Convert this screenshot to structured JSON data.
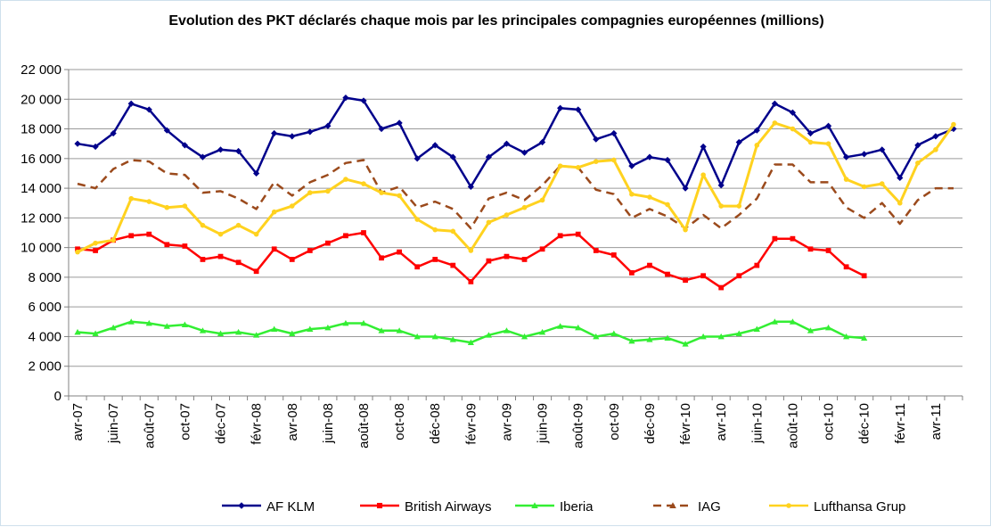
{
  "chart_data": {
    "type": "line",
    "title": "Evolution des PKT déclarés chaque mois par les principales compagnies européennes (millions)",
    "xlabel": "",
    "ylabel": "",
    "ylim": [
      0,
      22000
    ],
    "yticks": [
      0,
      2000,
      4000,
      6000,
      8000,
      10000,
      12000,
      14000,
      16000,
      18000,
      20000,
      22000
    ],
    "ytick_labels": [
      "0",
      "2 000",
      "4 000",
      "6 000",
      "8 000",
      "10 000",
      "12 000",
      "14 000",
      "16 000",
      "18 000",
      "20 000",
      "22 000"
    ],
    "x": [
      "avr-07",
      "mai-07",
      "juin-07",
      "juil-07",
      "août-07",
      "sept-07",
      "oct-07",
      "nov-07",
      "déc-07",
      "janv-08",
      "févr-08",
      "mars-08",
      "avr-08",
      "mai-08",
      "juin-08",
      "juil-08",
      "août-08",
      "sept-08",
      "oct-08",
      "nov-08",
      "déc-08",
      "janv-09",
      "févr-09",
      "mars-09",
      "avr-09",
      "mai-09",
      "juin-09",
      "juil-09",
      "août-09",
      "sept-09",
      "oct-09",
      "nov-09",
      "déc-09",
      "janv-10",
      "févr-10",
      "mars-10",
      "avr-10",
      "mai-10",
      "juin-10",
      "juil-10",
      "août-10",
      "sept-10",
      "oct-10",
      "nov-10",
      "déc-10",
      "janv-11",
      "févr-11",
      "mars-11",
      "avr-11",
      "mai-11"
    ],
    "x_tick_labels": [
      {
        "index": 0,
        "label": "avr-07"
      },
      {
        "index": 2,
        "label": "juin-07"
      },
      {
        "index": 4,
        "label": "août-07"
      },
      {
        "index": 6,
        "label": "oct-07"
      },
      {
        "index": 8,
        "label": "déc-07"
      },
      {
        "index": 10,
        "label": "févr-08"
      },
      {
        "index": 12,
        "label": "avr-08"
      },
      {
        "index": 14,
        "label": "juin-08"
      },
      {
        "index": 16,
        "label": "août-08"
      },
      {
        "index": 18,
        "label": "oct-08"
      },
      {
        "index": 20,
        "label": "déc-08"
      },
      {
        "index": 22,
        "label": "févr-09"
      },
      {
        "index": 24,
        "label": "avr-09"
      },
      {
        "index": 26,
        "label": "juin-09"
      },
      {
        "index": 28,
        "label": "août-09"
      },
      {
        "index": 30,
        "label": "oct-09"
      },
      {
        "index": 32,
        "label": "déc-09"
      },
      {
        "index": 34,
        "label": "févr-10"
      },
      {
        "index": 36,
        "label": "avr-10"
      },
      {
        "index": 38,
        "label": "juin-10"
      },
      {
        "index": 40,
        "label": "août-10"
      },
      {
        "index": 42,
        "label": "oct-10"
      },
      {
        "index": 44,
        "label": "déc-10"
      },
      {
        "index": 46,
        "label": "févr-11"
      },
      {
        "index": 48,
        "label": "avr-11"
      }
    ],
    "grid": "horizontal",
    "legend": "bottom",
    "series": [
      {
        "name": "AF KLM",
        "color": "#00008b",
        "marker": "diamond",
        "dash": "solid",
        "values": [
          17000,
          16800,
          17700,
          19700,
          19300,
          17900,
          16900,
          16100,
          16600,
          16500,
          15000,
          17700,
          17500,
          17800,
          18200,
          20100,
          19900,
          18000,
          18400,
          16000,
          16900,
          16100,
          14100,
          16100,
          17000,
          16400,
          17100,
          19400,
          19300,
          17300,
          17700,
          15500,
          16100,
          15900,
          14000,
          16800,
          14200,
          17100,
          17900,
          19700,
          19100,
          17700,
          18200,
          16100,
          16300,
          16600,
          14700,
          16900,
          17500,
          18000
        ]
      },
      {
        "name": "British Airways",
        "color": "#ff0000",
        "marker": "square",
        "dash": "solid",
        "values": [
          9900,
          9800,
          10500,
          10800,
          10900,
          10200,
          10100,
          9200,
          9400,
          9000,
          8400,
          9900,
          9200,
          9800,
          10300,
          10800,
          11000,
          9300,
          9700,
          8700,
          9200,
          8800,
          7700,
          9100,
          9400,
          9200,
          9900,
          10800,
          10900,
          9800,
          9500,
          8300,
          8800,
          8200,
          7800,
          8100,
          7300,
          8100,
          8800,
          10600,
          10600,
          9900,
          9800,
          8700,
          8100,
          null,
          null,
          null,
          null,
          null
        ]
      },
      {
        "name": "Iberia",
        "color": "#33ee33",
        "marker": "triangle",
        "dash": "solid",
        "values": [
          4300,
          4200,
          4600,
          5000,
          4900,
          4700,
          4800,
          4400,
          4200,
          4300,
          4100,
          4500,
          4200,
          4500,
          4600,
          4900,
          4900,
          4400,
          4400,
          4000,
          4000,
          3800,
          3600,
          4100,
          4400,
          4000,
          4300,
          4700,
          4600,
          4000,
          4200,
          3700,
          3800,
          3900,
          3500,
          4000,
          4000,
          4200,
          4500,
          5000,
          5000,
          4400,
          4600,
          4000,
          3900,
          null,
          null,
          null,
          null,
          null
        ]
      },
      {
        "name": "IAG",
        "color": "#9b4a1c",
        "marker": "triangle",
        "dash": "dashed",
        "values": [
          14300,
          14000,
          15300,
          15900,
          15800,
          15000,
          14900,
          13700,
          13800,
          13300,
          12600,
          14400,
          13500,
          14400,
          14900,
          15700,
          15900,
          13700,
          14100,
          12700,
          13100,
          12600,
          11300,
          13300,
          13700,
          13200,
          14200,
          15500,
          15400,
          13900,
          13600,
          12000,
          12600,
          12100,
          11300,
          12200,
          11300,
          12200,
          13300,
          15600,
          15600,
          14400,
          14400,
          12700,
          12000,
          13000,
          11600,
          13200,
          14000,
          14000
        ]
      },
      {
        "name": "Lufthansa Grup",
        "color": "#ffd21f",
        "marker": "circle",
        "dash": "solid",
        "values": [
          9700,
          10300,
          10500,
          13300,
          13100,
          12700,
          12800,
          11500,
          10900,
          11500,
          10900,
          12400,
          12800,
          13700,
          13800,
          14600,
          14300,
          13700,
          13500,
          11900,
          11200,
          11100,
          9800,
          11700,
          12200,
          12700,
          13200,
          15500,
          15400,
          15800,
          15900,
          13600,
          13400,
          12900,
          11200,
          14900,
          12800,
          12800,
          16900,
          18400,
          18000,
          17100,
          17000,
          14600,
          14100,
          14300,
          13000,
          15700,
          16600,
          18300
        ]
      }
    ]
  }
}
